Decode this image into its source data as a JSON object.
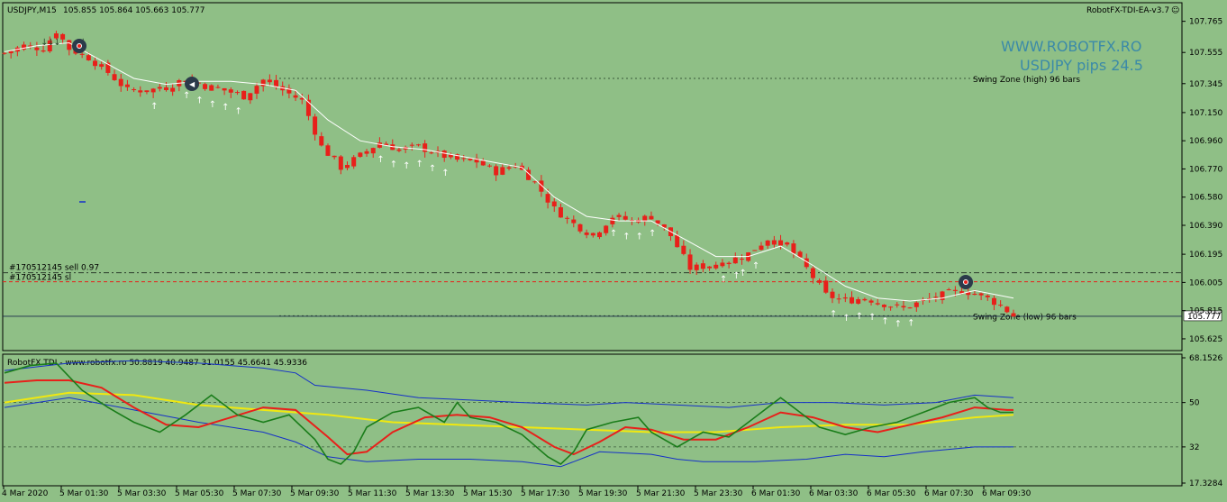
{
  "header": {
    "symbol": "USDJPY,M15",
    "ohlc": "105.855 105.864 105.663 105.777",
    "ea_name": "RobotFX-TDI-EA-v3.7",
    "watermark": "WWW.ROBOTFX.RO",
    "pips": "USDJPY pips 24.5"
  },
  "price_panel": {
    "swing_high_label": "Swing Zone (high) 96 bars",
    "swing_low_label": "Swing Zone (low) 96 bars",
    "order_sell_label": "#170512145 sell 0.97",
    "order_sl_label": "#170512145 sl",
    "current_price_label": "105.777",
    "y_ticks": [
      "107.765",
      "107.555",
      "107.345",
      "107.150",
      "106.960",
      "106.770",
      "106.580",
      "106.390",
      "106.195",
      "106.005",
      "105.815",
      "105.625"
    ]
  },
  "indicator_panel": {
    "title": "RobotFX TDI - www.robotfx.ro 50.8819 40.9487 31.0155 45.6641 45.9336",
    "y_ticks": [
      "68.1526",
      "50",
      "32",
      "17.3284"
    ],
    "levels": [
      50,
      32
    ]
  },
  "x_ticks": [
    "4 Mar 2020",
    "5 Mar 01:30",
    "5 Mar 03:30",
    "5 Mar 05:30",
    "5 Mar 07:30",
    "5 Mar 09:30",
    "5 Mar 11:30",
    "5 Mar 13:30",
    "5 Mar 15:30",
    "5 Mar 17:30",
    "5 Mar 19:30",
    "5 Mar 21:30",
    "5 Mar 23:30",
    "6 Mar 01:30",
    "6 Mar 03:30",
    "6 Mar 05:30",
    "6 Mar 07:30",
    "6 Mar 09:30"
  ],
  "colors": {
    "background": "#8fbf86",
    "candle": "#e8201a",
    "ma_line": "#ffffff",
    "tdi_green": "#1a7d1a",
    "tdi_red": "#e8201a",
    "tdi_yellow": "#f0e810",
    "tdi_bands": "#1530c8"
  },
  "chart_data": [
    {
      "type": "candlestick",
      "symbol": "USDJPY",
      "timeframe": "M15",
      "y_range": [
        105.57,
        107.86
      ],
      "close_path": [
        [
          0,
          107.55
        ],
        [
          3,
          107.6
        ],
        [
          6,
          107.58
        ],
        [
          8,
          107.7
        ],
        [
          10,
          107.58
        ],
        [
          13,
          107.52
        ],
        [
          16,
          107.42
        ],
        [
          19,
          107.3
        ],
        [
          22,
          107.3
        ],
        [
          25,
          107.32
        ],
        [
          28,
          107.38
        ],
        [
          31,
          107.33
        ],
        [
          34,
          107.3
        ],
        [
          37,
          107.26
        ],
        [
          40,
          107.37
        ],
        [
          43,
          107.3
        ],
        [
          46,
          107.23
        ],
        [
          49,
          106.92
        ],
        [
          52,
          106.78
        ],
        [
          55,
          106.86
        ],
        [
          58,
          106.95
        ],
        [
          61,
          106.9
        ],
        [
          64,
          106.92
        ],
        [
          67,
          106.87
        ],
        [
          70,
          106.83
        ],
        [
          73,
          106.82
        ],
        [
          76,
          106.75
        ],
        [
          79,
          106.8
        ],
        [
          82,
          106.68
        ],
        [
          85,
          106.5
        ],
        [
          88,
          106.4
        ],
        [
          91,
          106.32
        ],
        [
          94,
          106.45
        ],
        [
          97,
          106.42
        ],
        [
          100,
          106.45
        ],
        [
          103,
          106.32
        ],
        [
          106,
          106.1
        ],
        [
          109,
          106.12
        ],
        [
          112,
          106.15
        ],
        [
          115,
          106.2
        ],
        [
          118,
          106.3
        ],
        [
          121,
          106.25
        ],
        [
          124,
          106.1
        ],
        [
          127,
          105.92
        ],
        [
          130,
          105.88
        ],
        [
          133,
          105.9
        ],
        [
          136,
          105.86
        ],
        [
          139,
          105.83
        ],
        [
          142,
          105.88
        ],
        [
          145,
          105.92
        ],
        [
          148,
          105.95
        ],
        [
          151,
          105.92
        ],
        [
          154,
          105.85
        ],
        [
          156,
          105.78
        ]
      ],
      "ma_path": [
        [
          0,
          107.56
        ],
        [
          5,
          107.6
        ],
        [
          10,
          107.62
        ],
        [
          15,
          107.5
        ],
        [
          20,
          107.38
        ],
        [
          25,
          107.34
        ],
        [
          30,
          107.36
        ],
        [
          35,
          107.36
        ],
        [
          40,
          107.34
        ],
        [
          45,
          107.3
        ],
        [
          50,
          107.1
        ],
        [
          55,
          106.96
        ],
        [
          60,
          106.92
        ],
        [
          65,
          106.9
        ],
        [
          70,
          106.86
        ],
        [
          75,
          106.82
        ],
        [
          80,
          106.78
        ],
        [
          85,
          106.58
        ],
        [
          90,
          106.45
        ],
        [
          95,
          106.42
        ],
        [
          100,
          106.42
        ],
        [
          105,
          106.3
        ],
        [
          110,
          106.18
        ],
        [
          115,
          106.18
        ],
        [
          120,
          106.25
        ],
        [
          125,
          106.12
        ],
        [
          130,
          105.98
        ],
        [
          135,
          105.9
        ],
        [
          140,
          105.88
        ],
        [
          145,
          105.9
        ],
        [
          150,
          105.95
        ],
        [
          156,
          105.9
        ]
      ],
      "swing_high": 107.38,
      "swing_low": 105.78,
      "order_sell": 106.07,
      "order_sl": 106.01,
      "current_price": 105.777
    },
    {
      "type": "line",
      "name": "RobotFX TDI",
      "y_range": [
        17.3284,
        68.1526
      ],
      "series": [
        {
          "key": "green",
          "path": [
            [
              0,
              62
            ],
            [
              4,
              65
            ],
            [
              8,
              66
            ],
            [
              12,
              55
            ],
            [
              16,
              48
            ],
            [
              20,
              42
            ],
            [
              24,
              38
            ],
            [
              28,
              45
            ],
            [
              32,
              53
            ],
            [
              36,
              45
            ],
            [
              40,
              42
            ],
            [
              44,
              45
            ],
            [
              48,
              35
            ],
            [
              50,
              27
            ],
            [
              52,
              25
            ],
            [
              54,
              30
            ],
            [
              56,
              40
            ],
            [
              60,
              46
            ],
            [
              64,
              48
            ],
            [
              68,
              42
            ],
            [
              70,
              50
            ],
            [
              72,
              44
            ],
            [
              76,
              42
            ],
            [
              80,
              37
            ],
            [
              84,
              28
            ],
            [
              86,
              25
            ],
            [
              88,
              30
            ],
            [
              90,
              39
            ],
            [
              94,
              42
            ],
            [
              98,
              44
            ],
            [
              100,
              38
            ],
            [
              104,
              32
            ],
            [
              108,
              38
            ],
            [
              112,
              36
            ],
            [
              116,
              44
            ],
            [
              120,
              52
            ],
            [
              122,
              48
            ],
            [
              126,
              40
            ],
            [
              130,
              37
            ],
            [
              134,
              40
            ],
            [
              138,
              42
            ],
            [
              142,
              46
            ],
            [
              146,
              50
            ],
            [
              150,
              52
            ],
            [
              152,
              48
            ],
            [
              154,
              46
            ],
            [
              156,
              46
            ]
          ]
        },
        {
          "key": "red",
          "path": [
            [
              0,
              58
            ],
            [
              5,
              59
            ],
            [
              10,
              59
            ],
            [
              15,
              56
            ],
            [
              20,
              48
            ],
            [
              25,
              41
            ],
            [
              30,
              40
            ],
            [
              35,
              44
            ],
            [
              40,
              48
            ],
            [
              45,
              47
            ],
            [
              50,
              36
            ],
            [
              53,
              29
            ],
            [
              56,
              30
            ],
            [
              60,
              38
            ],
            [
              65,
              44
            ],
            [
              70,
              45
            ],
            [
              75,
              44
            ],
            [
              80,
              40
            ],
            [
              85,
              32
            ],
            [
              88,
              29
            ],
            [
              92,
              34
            ],
            [
              96,
              40
            ],
            [
              100,
              39
            ],
            [
              105,
              35
            ],
            [
              110,
              35
            ],
            [
              115,
              40
            ],
            [
              120,
              46
            ],
            [
              125,
              44
            ],
            [
              130,
              40
            ],
            [
              135,
              38
            ],
            [
              140,
              41
            ],
            [
              145,
              44
            ],
            [
              150,
              48
            ],
            [
              155,
              47
            ],
            [
              156,
              47
            ]
          ]
        },
        {
          "key": "yellow",
          "path": [
            [
              0,
              50
            ],
            [
              10,
              54
            ],
            [
              20,
              53
            ],
            [
              30,
              49
            ],
            [
              40,
              47
            ],
            [
              50,
              45
            ],
            [
              60,
              42
            ],
            [
              70,
              41
            ],
            [
              80,
              40
            ],
            [
              90,
              39
            ],
            [
              100,
              38
            ],
            [
              110,
              38
            ],
            [
              120,
              40
            ],
            [
              130,
              41
            ],
            [
              140,
              41
            ],
            [
              150,
              44
            ],
            [
              156,
              45
            ]
          ]
        },
        {
          "key": "band_upper",
          "path": [
            [
              0,
              63
            ],
            [
              10,
              66
            ],
            [
              20,
              67
            ],
            [
              30,
              66
            ],
            [
              40,
              64
            ],
            [
              45,
              62
            ],
            [
              48,
              57
            ],
            [
              56,
              55
            ],
            [
              64,
              52
            ],
            [
              72,
              51
            ],
            [
              80,
              50
            ],
            [
              90,
              49
            ],
            [
              96,
              50
            ],
            [
              104,
              49
            ],
            [
              112,
              48
            ],
            [
              120,
              50
            ],
            [
              128,
              50
            ],
            [
              136,
              49
            ],
            [
              144,
              50
            ],
            [
              150,
              53
            ],
            [
              156,
              52
            ]
          ]
        },
        {
          "key": "band_lower",
          "path": [
            [
              0,
              48
            ],
            [
              10,
              52
            ],
            [
              20,
              47
            ],
            [
              30,
              42
            ],
            [
              40,
              38
            ],
            [
              45,
              34
            ],
            [
              50,
              28
            ],
            [
              56,
              26
            ],
            [
              64,
              27
            ],
            [
              72,
              27
            ],
            [
              80,
              26
            ],
            [
              86,
              24
            ],
            [
              92,
              30
            ],
            [
              100,
              29
            ],
            [
              104,
              27
            ],
            [
              108,
              26
            ],
            [
              116,
              26
            ],
            [
              124,
              27
            ],
            [
              130,
              29
            ],
            [
              136,
              28
            ],
            [
              142,
              30
            ],
            [
              146,
              31
            ],
            [
              150,
              32
            ],
            [
              156,
              32
            ]
          ]
        }
      ],
      "levels": [
        50,
        32
      ]
    }
  ]
}
